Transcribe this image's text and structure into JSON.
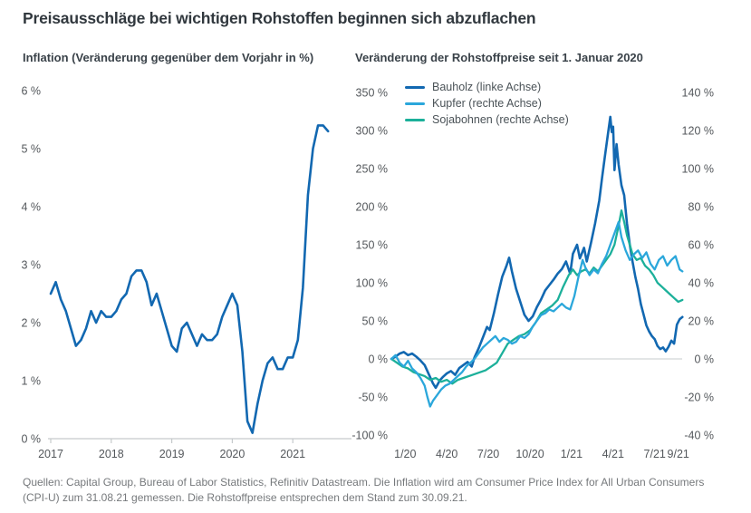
{
  "title": "Preisausschläge bei wichtigen Rohstoffen beginnen sich abzuflachen",
  "footer": "Quellen: Capital Group, Bureau of Labor Statistics, Refinitiv Datastream. Die Inflation wird am Consumer Price Index for All Urban Consumers (CPI-U) zum 31.08.21 gemessen. Die Rohstoffpreise entsprechen dem Stand zum 30.09.21.",
  "colors": {
    "axis_line": "#c6cacc",
    "zero_line": "#d2d5d7",
    "tick_text": "#54585c"
  },
  "chart_data": [
    {
      "type": "line",
      "title": "Inflation (Veränderung gegenüber dem Vorjahr in %)",
      "xlabel": "",
      "ylabel": "",
      "ylim": [
        0,
        6
      ],
      "grid": false,
      "y_ticks": [
        "6 %",
        "5 %",
        "4 %",
        "3 %",
        "2 %",
        "1 %",
        "0 %"
      ],
      "x_ticks": [
        "2017",
        "2018",
        "2019",
        "2020",
        "2021"
      ],
      "x_unit": "monthly, Jan 2017 - Aug 2021",
      "series": [
        {
          "name": "Inflation",
          "color": "#1268B1",
          "values": [
            2.5,
            2.7,
            2.4,
            2.2,
            1.9,
            1.6,
            1.7,
            1.9,
            2.2,
            2.0,
            2.2,
            2.1,
            2.1,
            2.2,
            2.4,
            2.5,
            2.8,
            2.9,
            2.9,
            2.7,
            2.3,
            2.5,
            2.2,
            1.9,
            1.6,
            1.5,
            1.9,
            2.0,
            1.8,
            1.6,
            1.8,
            1.7,
            1.7,
            1.8,
            2.1,
            2.3,
            2.5,
            2.3,
            1.5,
            0.3,
            0.1,
            0.6,
            1.0,
            1.3,
            1.4,
            1.2,
            1.2,
            1.4,
            1.4,
            1.7,
            2.6,
            4.2,
            5.0,
            5.4,
            5.4,
            5.3
          ]
        }
      ]
    },
    {
      "type": "line",
      "title": "Veränderung der Rohstoffpreise seit 1. Januar 2020",
      "legend_position": "top-left",
      "left_axis": {
        "lim": [
          -100,
          350
        ],
        "ticks": [
          "350 %",
          "300 %",
          "250 %",
          "200 %",
          "150 %",
          "100 %",
          "50 %",
          "0 %",
          "-50 %",
          "-100 %"
        ]
      },
      "right_axis": {
        "lim": [
          -40,
          140
        ],
        "ticks": [
          "140 %",
          "120 %",
          "100 %",
          "80 %",
          "60 %",
          "40 %",
          "20 %",
          "0 %",
          "-20 %",
          "-40 %"
        ]
      },
      "x_unit": "months since 1 Jan 2020",
      "x_ticks": [
        {
          "label": "1/20",
          "t": 1
        },
        {
          "label": "4/20",
          "t": 4
        },
        {
          "label": "7/20",
          "t": 7
        },
        {
          "label": "10/20",
          "t": 10
        },
        {
          "label": "1/21",
          "t": 13
        },
        {
          "label": "4/21",
          "t": 16
        },
        {
          "label": "7/21",
          "t": 19
        },
        {
          "label": "9/21",
          "t": 20.7
        }
      ],
      "series": [
        {
          "name": "Bauholz (linke Achse)",
          "axis": "left",
          "color": "#1268B1",
          "points": [
            [
              0,
              0
            ],
            [
              0.3,
              3
            ],
            [
              0.6,
              7
            ],
            [
              0.9,
              9
            ],
            [
              1.2,
              5
            ],
            [
              1.5,
              7
            ],
            [
              1.8,
              3
            ],
            [
              2.1,
              -2
            ],
            [
              2.4,
              -8
            ],
            [
              2.7,
              -20
            ],
            [
              3.0,
              -32
            ],
            [
              3.2,
              -38
            ],
            [
              3.5,
              -28
            ],
            [
              3.7,
              -24
            ],
            [
              4.0,
              -19
            ],
            [
              4.3,
              -16
            ],
            [
              4.6,
              -21
            ],
            [
              4.9,
              -12
            ],
            [
              5.2,
              -8
            ],
            [
              5.5,
              -4
            ],
            [
              5.8,
              -10
            ],
            [
              6.0,
              2
            ],
            [
              6.3,
              14
            ],
            [
              6.6,
              28
            ],
            [
              6.9,
              42
            ],
            [
              7.1,
              38
            ],
            [
              7.4,
              60
            ],
            [
              7.7,
              85
            ],
            [
              8.0,
              108
            ],
            [
              8.3,
              122
            ],
            [
              8.5,
              133
            ],
            [
              8.7,
              115
            ],
            [
              9.0,
              92
            ],
            [
              9.3,
              75
            ],
            [
              9.6,
              58
            ],
            [
              9.9,
              50
            ],
            [
              10.2,
              56
            ],
            [
              10.5,
              68
            ],
            [
              10.8,
              78
            ],
            [
              11.1,
              90
            ],
            [
              11.4,
              97
            ],
            [
              11.7,
              104
            ],
            [
              12.0,
              112
            ],
            [
              12.3,
              118
            ],
            [
              12.6,
              128
            ],
            [
              12.9,
              112
            ],
            [
              13.1,
              138
            ],
            [
              13.4,
              150
            ],
            [
              13.6,
              132
            ],
            [
              13.9,
              146
            ],
            [
              14.1,
              128
            ],
            [
              14.4,
              152
            ],
            [
              14.7,
              178
            ],
            [
              15.0,
              208
            ],
            [
              15.2,
              238
            ],
            [
              15.4,
              265
            ],
            [
              15.6,
              292
            ],
            [
              15.8,
              318
            ],
            [
              15.9,
              298
            ],
            [
              16.0,
              305
            ],
            [
              16.1,
              248
            ],
            [
              16.25,
              282
            ],
            [
              16.4,
              255
            ],
            [
              16.6,
              228
            ],
            [
              16.8,
              215
            ],
            [
              17.0,
              178
            ],
            [
              17.2,
              150
            ],
            [
              17.4,
              128
            ],
            [
              17.6,
              108
            ],
            [
              17.8,
              92
            ],
            [
              18.0,
              72
            ],
            [
              18.2,
              58
            ],
            [
              18.4,
              44
            ],
            [
              18.6,
              36
            ],
            [
              18.8,
              30
            ],
            [
              19.0,
              26
            ],
            [
              19.2,
              17
            ],
            [
              19.4,
              13
            ],
            [
              19.6,
              15
            ],
            [
              19.8,
              10
            ],
            [
              20.0,
              16
            ],
            [
              20.2,
              24
            ],
            [
              20.4,
              20
            ],
            [
              20.6,
              45
            ],
            [
              20.8,
              52
            ],
            [
              21.0,
              55
            ]
          ]
        },
        {
          "name": "Kupfer (rechte Achse)",
          "axis": "right",
          "color": "#2BA7DB",
          "points": [
            [
              0,
              0
            ],
            [
              0.3,
              2
            ],
            [
              0.6,
              -2
            ],
            [
              0.9,
              -4
            ],
            [
              1.2,
              -1
            ],
            [
              1.5,
              -5
            ],
            [
              1.8,
              -7
            ],
            [
              2.1,
              -10
            ],
            [
              2.4,
              -14
            ],
            [
              2.6,
              -20
            ],
            [
              2.8,
              -25
            ],
            [
              3.0,
              -22
            ],
            [
              3.3,
              -19
            ],
            [
              3.6,
              -16
            ],
            [
              3.9,
              -14
            ],
            [
              4.2,
              -13
            ],
            [
              4.5,
              -11
            ],
            [
              4.8,
              -9
            ],
            [
              5.1,
              -7
            ],
            [
              5.4,
              -4
            ],
            [
              5.7,
              -2
            ],
            [
              6.0,
              0
            ],
            [
              6.3,
              3
            ],
            [
              6.6,
              6
            ],
            [
              6.9,
              8
            ],
            [
              7.2,
              10
            ],
            [
              7.5,
              12
            ],
            [
              7.8,
              9
            ],
            [
              8.1,
              11
            ],
            [
              8.4,
              10
            ],
            [
              8.7,
              8
            ],
            [
              9.0,
              9
            ],
            [
              9.3,
              12
            ],
            [
              9.6,
              11
            ],
            [
              9.9,
              13
            ],
            [
              10.2,
              17
            ],
            [
              10.5,
              20
            ],
            [
              10.8,
              23
            ],
            [
              11.1,
              24
            ],
            [
              11.4,
              26
            ],
            [
              11.7,
              25
            ],
            [
              12.0,
              27
            ],
            [
              12.3,
              29
            ],
            [
              12.6,
              27
            ],
            [
              12.9,
              26
            ],
            [
              13.2,
              33
            ],
            [
              13.5,
              43
            ],
            [
              13.8,
              52
            ],
            [
              14.0,
              48
            ],
            [
              14.3,
              44
            ],
            [
              14.6,
              47
            ],
            [
              14.9,
              45
            ],
            [
              15.2,
              50
            ],
            [
              15.5,
              54
            ],
            [
              15.8,
              60
            ],
            [
              16.1,
              66
            ],
            [
              16.4,
              72
            ],
            [
              16.6,
              64
            ],
            [
              16.9,
              57
            ],
            [
              17.2,
              52
            ],
            [
              17.5,
              55
            ],
            [
              17.8,
              57
            ],
            [
              18.1,
              53
            ],
            [
              18.4,
              56
            ],
            [
              18.7,
              50
            ],
            [
              19.0,
              47
            ],
            [
              19.3,
              52
            ],
            [
              19.6,
              54
            ],
            [
              19.9,
              49
            ],
            [
              20.2,
              52
            ],
            [
              20.5,
              54
            ],
            [
              20.8,
              47
            ],
            [
              21.0,
              46
            ]
          ]
        },
        {
          "name": "Sojabohnen (rechte Achse)",
          "axis": "right",
          "color": "#1CB09A",
          "points": [
            [
              0,
              0
            ],
            [
              0.4,
              -2
            ],
            [
              0.8,
              -4
            ],
            [
              1.2,
              -5
            ],
            [
              1.6,
              -7
            ],
            [
              2.0,
              -8
            ],
            [
              2.4,
              -9
            ],
            [
              2.8,
              -11
            ],
            [
              3.2,
              -10
            ],
            [
              3.6,
              -12
            ],
            [
              4.0,
              -11
            ],
            [
              4.4,
              -13
            ],
            [
              4.8,
              -11
            ],
            [
              5.2,
              -10
            ],
            [
              5.6,
              -9
            ],
            [
              6.0,
              -8
            ],
            [
              6.4,
              -7
            ],
            [
              6.8,
              -6
            ],
            [
              7.2,
              -4
            ],
            [
              7.6,
              -2
            ],
            [
              8.0,
              3
            ],
            [
              8.4,
              8
            ],
            [
              8.8,
              10
            ],
            [
              9.2,
              12
            ],
            [
              9.6,
              13
            ],
            [
              10.0,
              15
            ],
            [
              10.4,
              19
            ],
            [
              10.8,
              24
            ],
            [
              11.2,
              26
            ],
            [
              11.6,
              28
            ],
            [
              12.0,
              31
            ],
            [
              12.4,
              38
            ],
            [
              12.8,
              44
            ],
            [
              13.1,
              47
            ],
            [
              13.4,
              44
            ],
            [
              13.7,
              46
            ],
            [
              14.0,
              47
            ],
            [
              14.3,
              45
            ],
            [
              14.6,
              48
            ],
            [
              14.9,
              46
            ],
            [
              15.2,
              49
            ],
            [
              15.5,
              52
            ],
            [
              15.8,
              55
            ],
            [
              16.1,
              60
            ],
            [
              16.4,
              70
            ],
            [
              16.6,
              78
            ],
            [
              16.8,
              72
            ],
            [
              17.0,
              65
            ],
            [
              17.2,
              60
            ],
            [
              17.4,
              55
            ],
            [
              17.7,
              52
            ],
            [
              18.0,
              53
            ],
            [
              18.3,
              49
            ],
            [
              18.6,
              47
            ],
            [
              18.9,
              44
            ],
            [
              19.2,
              40
            ],
            [
              19.5,
              38
            ],
            [
              19.8,
              36
            ],
            [
              20.1,
              34
            ],
            [
              20.4,
              32
            ],
            [
              20.7,
              30
            ],
            [
              21.0,
              31
            ]
          ]
        }
      ]
    }
  ]
}
